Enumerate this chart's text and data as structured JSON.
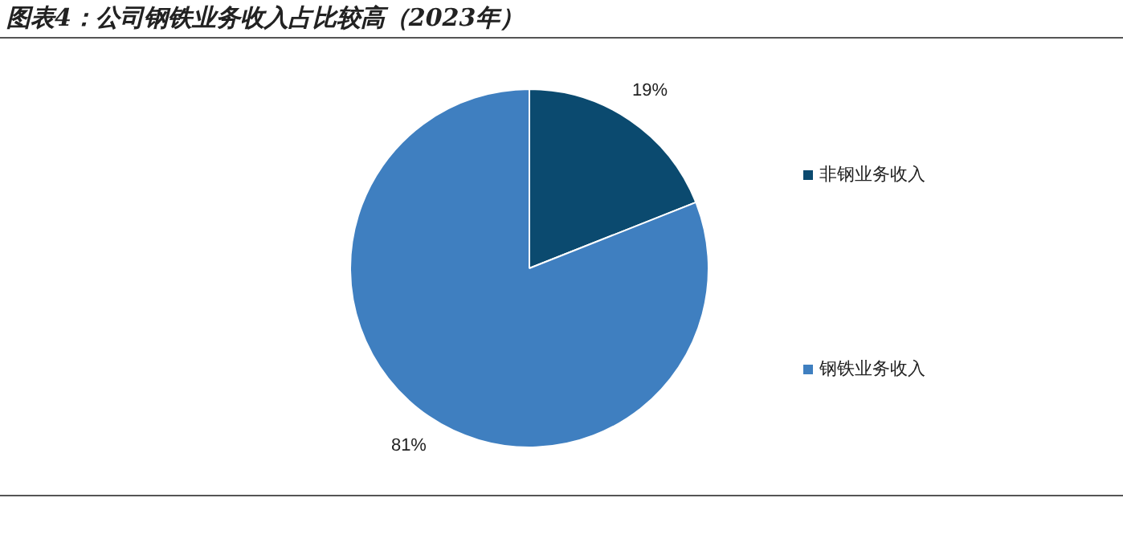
{
  "chart_data": {
    "type": "pie",
    "title": "图表4：公司钢铁业务收入占比较高（2023年）",
    "categories": [
      "非钢业务收入",
      "钢铁业务收入"
    ],
    "values": [
      19,
      81
    ],
    "value_labels": [
      "19%",
      "81%"
    ],
    "colors": [
      "#0b4a6f",
      "#3f7fc0"
    ],
    "legend": "right"
  }
}
